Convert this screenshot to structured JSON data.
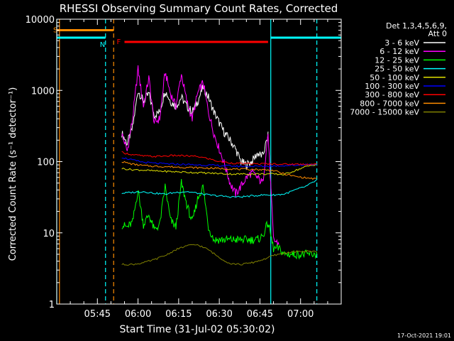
{
  "chart_data": {
    "type": "line",
    "title": "RHESSI Observing Summary Count Rates, Corrected",
    "xlabel": "Start Time (31-Jul-02 05:30:02)",
    "ylabel": "Corrected Count Rate (s⁻¹ detector⁻¹)",
    "y_scale": "log",
    "ylim": [
      1,
      10000
    ],
    "xlim": [
      "05:30",
      "07:15"
    ],
    "y_ticks": [
      {
        "value": 1,
        "label": "1"
      },
      {
        "value": 10,
        "label": "10"
      },
      {
        "value": 100,
        "label": "100"
      },
      {
        "value": 1000,
        "label": "1000"
      },
      {
        "value": 10000,
        "label": "10000"
      }
    ],
    "x_ticks": [
      {
        "value": "05:45",
        "label": "05:45"
      },
      {
        "value": "06:00",
        "label": "06:00"
      },
      {
        "value": "06:15",
        "label": "06:15"
      },
      {
        "value": "06:30",
        "label": "06:30"
      },
      {
        "value": "06:45",
        "label": "06:45"
      },
      {
        "value": "07:00",
        "label": "07:00"
      }
    ],
    "legend_title": [
      "Det 1,3,4,5,6,9,",
      "Att 0"
    ],
    "legend_position": "right",
    "footer": "17-Oct-2021 19:01",
    "colors": {
      "background": "#000000",
      "axes": "#ffffff"
    },
    "series": [
      {
        "name": "3 - 6 keV",
        "color": "#ffffff",
        "x": [
          "05:54",
          "05:56",
          "05:58",
          "06:00",
          "06:02",
          "06:04",
          "06:06",
          "06:08",
          "06:10",
          "06:12",
          "06:14",
          "06:16",
          "06:18",
          "06:20",
          "06:22",
          "06:24",
          "06:26",
          "06:28",
          "06:30",
          "06:32",
          "06:34",
          "06:36",
          "06:38",
          "06:40",
          "06:42",
          "06:44",
          "06:46",
          "06:48"
        ],
        "y": [
          250,
          180,
          300,
          1000,
          700,
          900,
          450,
          500,
          1000,
          700,
          600,
          800,
          600,
          500,
          700,
          1100,
          800,
          500,
          350,
          250,
          200,
          150,
          100,
          90,
          100,
          130,
          120,
          230
        ]
      },
      {
        "name": "6 - 12 keV",
        "color": "#ff00ff",
        "x": [
          "05:54",
          "05:56",
          "05:58",
          "06:00",
          "06:02",
          "06:04",
          "06:06",
          "06:08",
          "06:10",
          "06:12",
          "06:14",
          "06:16",
          "06:18",
          "06:20",
          "06:22",
          "06:24",
          "06:26",
          "06:28",
          "06:30",
          "06:32",
          "06:34",
          "06:36",
          "06:38",
          "06:40",
          "06:42",
          "06:44",
          "06:46",
          "06:48",
          "06:50",
          "06:52"
        ],
        "y": [
          250,
          140,
          400,
          2000,
          600,
          1500,
          350,
          400,
          1800,
          900,
          600,
          1700,
          700,
          400,
          900,
          1300,
          500,
          250,
          150,
          90,
          50,
          35,
          45,
          60,
          70,
          60,
          50,
          250,
          8,
          7
        ]
      },
      {
        "name": "12 - 25 keV",
        "color": "#00ff00",
        "x": [
          "05:54",
          "05:56",
          "05:58",
          "06:00",
          "06:02",
          "06:04",
          "06:06",
          "06:08",
          "06:10",
          "06:12",
          "06:14",
          "06:16",
          "06:18",
          "06:20",
          "06:22",
          "06:24",
          "06:26",
          "06:28",
          "06:30",
          "06:32",
          "06:34",
          "06:36",
          "06:38",
          "06:40",
          "06:42",
          "06:44",
          "06:46",
          "06:48",
          "06:50",
          "06:52",
          "06:54",
          "06:56",
          "06:58",
          "07:00",
          "07:02",
          "07:04",
          "07:06"
        ],
        "y": [
          13,
          12,
          14,
          40,
          13,
          18,
          11,
          13,
          45,
          15,
          12,
          50,
          25,
          14,
          30,
          45,
          12,
          8,
          8,
          8,
          8,
          8,
          8,
          8,
          8,
          8,
          9,
          14,
          6,
          6,
          5,
          5,
          5,
          5,
          5,
          5,
          5
        ]
      },
      {
        "name": "25 - 50 keV",
        "color": "#00ffff",
        "x": [
          "05:54",
          "05:58",
          "06:02",
          "06:06",
          "06:10",
          "06:14",
          "06:18",
          "06:22",
          "06:26",
          "06:30",
          "06:34",
          "06:38",
          "06:42",
          "06:46",
          "06:50",
          "06:54",
          "06:58",
          "07:02",
          "07:06"
        ],
        "y": [
          36,
          37,
          38,
          36,
          35,
          37,
          38,
          36,
          34,
          33,
          32,
          32,
          33,
          34,
          34,
          35,
          40,
          45,
          55
        ]
      },
      {
        "name": "50 - 100 keV",
        "color": "#e0e000",
        "x": [
          "05:54",
          "05:58",
          "06:02",
          "06:06",
          "06:10",
          "06:14",
          "06:18",
          "06:22",
          "06:26",
          "06:30",
          "06:34",
          "06:38",
          "06:42",
          "06:46",
          "06:50",
          "06:54",
          "06:58",
          "07:02",
          "07:06"
        ],
        "y": [
          80,
          77,
          76,
          74,
          73,
          72,
          71,
          70,
          69,
          68,
          67,
          67,
          67,
          67,
          67,
          66,
          75,
          85,
          92
        ]
      },
      {
        "name": "100 - 300 keV",
        "color": "#0000ff",
        "x": [
          "05:54",
          "05:58",
          "06:02",
          "06:06",
          "06:10",
          "06:14",
          "06:18",
          "06:22",
          "06:26",
          "06:30",
          "06:34",
          "06:38",
          "06:42",
          "06:46",
          "06:50",
          "06:54",
          "06:58",
          "07:02",
          "07:06"
        ],
        "y": [
          115,
          105,
          98,
          95,
          93,
          92,
          91,
          90,
          89,
          88,
          87,
          86,
          86,
          86,
          87,
          88,
          89,
          91,
          92
        ]
      },
      {
        "name": "300 - 800 keV",
        "color": "#ff0000",
        "x": [
          "05:54",
          "05:58",
          "06:02",
          "06:06",
          "06:10",
          "06:14",
          "06:18",
          "06:22",
          "06:26",
          "06:30",
          "06:34",
          "06:38",
          "06:42",
          "06:46",
          "06:50",
          "06:54",
          "06:58",
          "07:02",
          "07:06"
        ],
        "y": [
          135,
          125,
          120,
          118,
          120,
          122,
          120,
          118,
          110,
          100,
          96,
          94,
          93,
          93,
          93,
          92,
          92,
          92,
          92
        ]
      },
      {
        "name": "800 - 7000 keV",
        "color": "#ff8c00",
        "x": [
          "05:54",
          "05:58",
          "06:02",
          "06:06",
          "06:10",
          "06:14",
          "06:18",
          "06:22",
          "06:26",
          "06:30",
          "06:34",
          "06:38",
          "06:42",
          "06:46",
          "06:50",
          "06:54",
          "06:58",
          "07:02",
          "07:06"
        ],
        "y": [
          100,
          92,
          88,
          86,
          85,
          84,
          83,
          82,
          81,
          80,
          79,
          78,
          78,
          77,
          75,
          67,
          62,
          59,
          57
        ]
      },
      {
        "name": "7000 - 15000 keV",
        "color": "#808000",
        "x": [
          "05:54",
          "05:58",
          "06:02",
          "06:06",
          "06:10",
          "06:14",
          "06:18",
          "06:22",
          "06:26",
          "06:30",
          "06:34",
          "06:38",
          "06:42",
          "06:46",
          "06:50",
          "06:54",
          "06:58",
          "07:02",
          "07:06"
        ],
        "y": [
          3.6,
          3.6,
          3.8,
          4.2,
          4.8,
          5.8,
          6.6,
          6.8,
          5.8,
          4.5,
          3.7,
          3.6,
          3.8,
          4.2,
          4.8,
          5.2,
          5.4,
          5.5,
          5.5
        ]
      }
    ],
    "flags": [
      {
        "label": "S",
        "color": "#ff8c00",
        "x_start": "05:30",
        "x_end": "05:51",
        "y": 7000
      },
      {
        "label": "N",
        "color": "#00ffff",
        "x_start": "05:30",
        "x_end": "05:48",
        "y": 5500
      },
      {
        "label": "N",
        "color": "#00ffff",
        "x_start": "06:49",
        "x_end": "07:16",
        "y": 5500
      },
      {
        "label": "F",
        "color": "#ff0000",
        "x_start": "05:55",
        "x_end": "06:48",
        "y": 4800
      }
    ],
    "vertical_markers": [
      {
        "x": "05:30",
        "color": "#00ffff",
        "style": "solid"
      },
      {
        "x": "05:31",
        "color": "#ff8c00",
        "style": "solid"
      },
      {
        "x": "05:48",
        "color": "#00ffff",
        "style": "dashed"
      },
      {
        "x": "05:51",
        "color": "#ff8c00",
        "style": "dashed"
      },
      {
        "x": "06:49",
        "color": "#00ffff",
        "style": "solid"
      },
      {
        "x": "07:06",
        "color": "#00ffff",
        "style": "dashed"
      }
    ]
  }
}
